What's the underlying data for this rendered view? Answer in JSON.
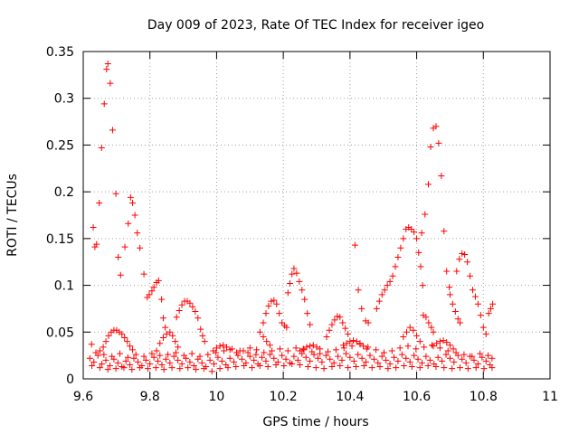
{
  "chart_data": {
    "type": "scatter",
    "title": "Day 009 of 2023, Rate Of TEC Index for receiver igeo",
    "xlabel": "GPS time / hours",
    "ylabel": "ROTI / TECUs",
    "xlim": [
      9.6,
      11
    ],
    "ylim": [
      0,
      0.35
    ],
    "x_ticks": [
      9.6,
      9.8,
      10,
      10.2,
      10.4,
      10.6,
      10.8,
      11
    ],
    "x_tick_labels": [
      "9.6",
      "9.8",
      "10",
      "10.2",
      "10.4",
      "10.6",
      "10.8",
      "11"
    ],
    "y_ticks": [
      0,
      0.05,
      0.1,
      0.15,
      0.2,
      0.25,
      0.3,
      0.35
    ],
    "y_tick_labels": [
      "0",
      "0.05",
      "0.1",
      "0.15",
      "0.2",
      "0.25",
      "0.3",
      "0.35"
    ],
    "grid": true,
    "marker": "plus",
    "color": "#ff0000",
    "points": [
      [
        9.625,
        0.037
      ],
      [
        9.63,
        0.162
      ],
      [
        9.635,
        0.141
      ],
      [
        9.64,
        0.144
      ],
      [
        9.648,
        0.188
      ],
      [
        9.655,
        0.247
      ],
      [
        9.663,
        0.294
      ],
      [
        9.67,
        0.331
      ],
      [
        9.674,
        0.337
      ],
      [
        9.681,
        0.316
      ],
      [
        9.688,
        0.266
      ],
      [
        9.698,
        0.198
      ],
      [
        9.705,
        0.13
      ],
      [
        9.712,
        0.111
      ],
      [
        9.725,
        0.141
      ],
      [
        9.735,
        0.166
      ],
      [
        9.742,
        0.194
      ],
      [
        9.748,
        0.188
      ],
      [
        9.755,
        0.175
      ],
      [
        9.762,
        0.156
      ],
      [
        9.77,
        0.14
      ],
      [
        9.782,
        0.112
      ],
      [
        9.792,
        0.087
      ],
      [
        9.798,
        0.09
      ],
      [
        9.806,
        0.094
      ],
      [
        9.812,
        0.098
      ],
      [
        9.82,
        0.103
      ],
      [
        9.826,
        0.105
      ],
      [
        9.835,
        0.085
      ],
      [
        9.84,
        0.065
      ],
      [
        9.846,
        0.055
      ],
      [
        9.65,
        0.03
      ],
      [
        9.66,
        0.034
      ],
      [
        9.668,
        0.04
      ],
      [
        9.676,
        0.046
      ],
      [
        9.684,
        0.05
      ],
      [
        9.692,
        0.052
      ],
      [
        9.7,
        0.052
      ],
      [
        9.708,
        0.05
      ],
      [
        9.716,
        0.048
      ],
      [
        9.724,
        0.044
      ],
      [
        9.732,
        0.04
      ],
      [
        9.74,
        0.035
      ],
      [
        9.748,
        0.031
      ],
      [
        9.88,
        0.066
      ],
      [
        9.888,
        0.073
      ],
      [
        9.896,
        0.079
      ],
      [
        9.904,
        0.083
      ],
      [
        9.912,
        0.083
      ],
      [
        9.92,
        0.081
      ],
      [
        9.928,
        0.077
      ],
      [
        9.936,
        0.072
      ],
      [
        9.944,
        0.065
      ],
      [
        9.952,
        0.053
      ],
      [
        9.958,
        0.046
      ],
      [
        9.964,
        0.04
      ],
      [
        9.82,
        0.03
      ],
      [
        9.83,
        0.038
      ],
      [
        9.84,
        0.044
      ],
      [
        9.85,
        0.048
      ],
      [
        9.86,
        0.05
      ],
      [
        9.868,
        0.046
      ],
      [
        9.876,
        0.04
      ],
      [
        9.884,
        0.034
      ],
      [
        10.14,
        0.06
      ],
      [
        10.148,
        0.07
      ],
      [
        10.156,
        0.078
      ],
      [
        10.164,
        0.083
      ],
      [
        10.172,
        0.084
      ],
      [
        10.18,
        0.08
      ],
      [
        10.188,
        0.07
      ],
      [
        10.196,
        0.06
      ],
      [
        10.204,
        0.057
      ],
      [
        10.21,
        0.055
      ],
      [
        10.13,
        0.05
      ],
      [
        10.14,
        0.045
      ],
      [
        10.15,
        0.04
      ],
      [
        10.16,
        0.036
      ],
      [
        10.214,
        0.092
      ],
      [
        10.22,
        0.102
      ],
      [
        10.226,
        0.112
      ],
      [
        10.232,
        0.118
      ],
      [
        10.24,
        0.113
      ],
      [
        10.248,
        0.104
      ],
      [
        10.256,
        0.095
      ],
      [
        10.264,
        0.085
      ],
      [
        10.272,
        0.07
      ],
      [
        10.28,
        0.058
      ],
      [
        10.33,
        0.045
      ],
      [
        10.338,
        0.052
      ],
      [
        10.346,
        0.058
      ],
      [
        10.354,
        0.063
      ],
      [
        10.362,
        0.067
      ],
      [
        10.37,
        0.066
      ],
      [
        10.378,
        0.06
      ],
      [
        10.386,
        0.054
      ],
      [
        10.394,
        0.048
      ],
      [
        10.415,
        0.143
      ],
      [
        10.425,
        0.095
      ],
      [
        10.435,
        0.075
      ],
      [
        10.447,
        0.062
      ],
      [
        10.455,
        0.06
      ],
      [
        10.48,
        0.075
      ],
      [
        10.488,
        0.083
      ],
      [
        10.496,
        0.09
      ],
      [
        10.504,
        0.095
      ],
      [
        10.512,
        0.1
      ],
      [
        10.52,
        0.104
      ],
      [
        10.528,
        0.11
      ],
      [
        10.536,
        0.12
      ],
      [
        10.544,
        0.13
      ],
      [
        10.552,
        0.14
      ],
      [
        10.56,
        0.15
      ],
      [
        10.568,
        0.16
      ],
      [
        10.576,
        0.162
      ],
      [
        10.584,
        0.16
      ],
      [
        10.592,
        0.157
      ],
      [
        10.6,
        0.15
      ],
      [
        10.606,
        0.135
      ],
      [
        10.612,
        0.12
      ],
      [
        10.618,
        0.1
      ],
      [
        10.62,
        0.068
      ],
      [
        10.628,
        0.066
      ],
      [
        10.636,
        0.06
      ],
      [
        10.644,
        0.055
      ],
      [
        10.65,
        0.05
      ],
      [
        10.615,
        0.156
      ],
      [
        10.625,
        0.176
      ],
      [
        10.635,
        0.208
      ],
      [
        10.642,
        0.248
      ],
      [
        10.65,
        0.268
      ],
      [
        10.658,
        0.27
      ],
      [
        10.666,
        0.252
      ],
      [
        10.674,
        0.217
      ],
      [
        10.682,
        0.158
      ],
      [
        10.69,
        0.115
      ],
      [
        10.698,
        0.098
      ],
      [
        10.7,
        0.09
      ],
      [
        10.708,
        0.08
      ],
      [
        10.716,
        0.072
      ],
      [
        10.724,
        0.064
      ],
      [
        10.73,
        0.06
      ],
      [
        10.72,
        0.115
      ],
      [
        10.728,
        0.128
      ],
      [
        10.736,
        0.134
      ],
      [
        10.744,
        0.133
      ],
      [
        10.752,
        0.125
      ],
      [
        10.76,
        0.11
      ],
      [
        10.768,
        0.095
      ],
      [
        10.776,
        0.088
      ],
      [
        10.784,
        0.08
      ],
      [
        10.792,
        0.068
      ],
      [
        10.8,
        0.055
      ],
      [
        10.808,
        0.048
      ],
      [
        10.816,
        0.07
      ],
      [
        10.822,
        0.075
      ],
      [
        10.828,
        0.08
      ],
      [
        10.56,
        0.045
      ],
      [
        10.57,
        0.05
      ],
      [
        10.58,
        0.055
      ],
      [
        10.59,
        0.052
      ],
      [
        10.6,
        0.046
      ],
      [
        10.61,
        0.04
      ],
      [
        9.62,
        0.022
      ],
      [
        9.632,
        0.018
      ],
      [
        9.644,
        0.025
      ],
      [
        9.656,
        0.016
      ],
      [
        9.668,
        0.02
      ],
      [
        9.68,
        0.014
      ],
      [
        9.692,
        0.021
      ],
      [
        9.704,
        0.017
      ],
      [
        9.716,
        0.013
      ],
      [
        9.728,
        0.019
      ],
      [
        9.74,
        0.015
      ],
      [
        9.752,
        0.022
      ],
      [
        9.764,
        0.018
      ],
      [
        9.776,
        0.014
      ],
      [
        9.788,
        0.02
      ],
      [
        9.8,
        0.016
      ],
      [
        9.812,
        0.023
      ],
      [
        9.824,
        0.019
      ],
      [
        9.836,
        0.015
      ],
      [
        9.848,
        0.021
      ],
      [
        9.86,
        0.017
      ],
      [
        9.872,
        0.024
      ],
      [
        9.884,
        0.02
      ],
      [
        9.896,
        0.016
      ],
      [
        9.908,
        0.022
      ],
      [
        9.92,
        0.018
      ],
      [
        9.932,
        0.014
      ],
      [
        9.944,
        0.021
      ],
      [
        9.956,
        0.017
      ],
      [
        9.968,
        0.013
      ],
      [
        9.98,
        0.02
      ],
      [
        9.992,
        0.016
      ],
      [
        10.004,
        0.023
      ],
      [
        10.016,
        0.019
      ],
      [
        10.028,
        0.015
      ],
      [
        10.04,
        0.022
      ],
      [
        10.052,
        0.018
      ],
      [
        10.064,
        0.025
      ],
      [
        10.076,
        0.021
      ],
      [
        10.088,
        0.017
      ],
      [
        10.1,
        0.024
      ],
      [
        10.112,
        0.02
      ],
      [
        10.124,
        0.016
      ],
      [
        10.136,
        0.023
      ],
      [
        10.148,
        0.019
      ],
      [
        10.16,
        0.026
      ],
      [
        10.172,
        0.022
      ],
      [
        10.184,
        0.018
      ],
      [
        10.196,
        0.025
      ],
      [
        10.208,
        0.021
      ],
      [
        10.22,
        0.017
      ],
      [
        10.232,
        0.024
      ],
      [
        10.244,
        0.02
      ],
      [
        10.256,
        0.027
      ],
      [
        10.268,
        0.023
      ],
      [
        10.28,
        0.019
      ],
      [
        10.292,
        0.026
      ],
      [
        10.304,
        0.022
      ],
      [
        10.316,
        0.018
      ],
      [
        10.328,
        0.025
      ],
      [
        10.34,
        0.021
      ],
      [
        10.352,
        0.017
      ],
      [
        10.364,
        0.024
      ],
      [
        10.376,
        0.02
      ],
      [
        10.388,
        0.027
      ],
      [
        10.4,
        0.023
      ],
      [
        10.412,
        0.019
      ],
      [
        10.424,
        0.026
      ],
      [
        10.436,
        0.022
      ],
      [
        10.448,
        0.018
      ],
      [
        10.46,
        0.025
      ],
      [
        10.472,
        0.021
      ],
      [
        10.484,
        0.017
      ],
      [
        10.496,
        0.024
      ],
      [
        10.508,
        0.02
      ],
      [
        10.52,
        0.016
      ],
      [
        10.532,
        0.023
      ],
      [
        10.544,
        0.019
      ],
      [
        10.556,
        0.026
      ],
      [
        10.568,
        0.022
      ],
      [
        10.58,
        0.018
      ],
      [
        10.592,
        0.025
      ],
      [
        10.604,
        0.021
      ],
      [
        10.616,
        0.017
      ],
      [
        10.628,
        0.024
      ],
      [
        10.64,
        0.02
      ],
      [
        10.652,
        0.016
      ],
      [
        10.664,
        0.023
      ],
      [
        10.676,
        0.019
      ],
      [
        10.688,
        0.026
      ],
      [
        10.7,
        0.022
      ],
      [
        10.712,
        0.018
      ],
      [
        10.724,
        0.025
      ],
      [
        10.736,
        0.021
      ],
      [
        10.748,
        0.017
      ],
      [
        10.76,
        0.024
      ],
      [
        10.772,
        0.02
      ],
      [
        10.784,
        0.016
      ],
      [
        10.796,
        0.023
      ],
      [
        10.808,
        0.019
      ],
      [
        10.82,
        0.015
      ],
      [
        10.826,
        0.022
      ],
      [
        9.626,
        0.014
      ],
      [
        9.638,
        0.028
      ],
      [
        9.65,
        0.012
      ],
      [
        9.662,
        0.026
      ],
      [
        9.674,
        0.01
      ],
      [
        9.686,
        0.024
      ],
      [
        9.698,
        0.011
      ],
      [
        9.71,
        0.027
      ],
      [
        9.722,
        0.012
      ],
      [
        9.734,
        0.023
      ],
      [
        9.746,
        0.01
      ],
      [
        9.758,
        0.026
      ],
      [
        9.77,
        0.012
      ],
      [
        9.782,
        0.024
      ],
      [
        9.794,
        0.011
      ],
      [
        9.806,
        0.027
      ],
      [
        9.818,
        0.012
      ],
      [
        9.83,
        0.025
      ],
      [
        9.842,
        0.01
      ],
      [
        9.854,
        0.026
      ],
      [
        9.866,
        0.012
      ],
      [
        9.878,
        0.028
      ],
      [
        9.89,
        0.011
      ],
      [
        9.902,
        0.025
      ],
      [
        9.914,
        0.012
      ],
      [
        9.926,
        0.027
      ],
      [
        9.938,
        0.01
      ],
      [
        9.95,
        0.024
      ],
      [
        9.962,
        0.011
      ],
      [
        9.974,
        0.026
      ],
      [
        9.986,
        0.008
      ],
      [
        9.998,
        0.028
      ],
      [
        10.01,
        0.011
      ],
      [
        10.022,
        0.03
      ],
      [
        10.034,
        0.012
      ],
      [
        10.046,
        0.032
      ],
      [
        10.058,
        0.013
      ],
      [
        10.07,
        0.03
      ],
      [
        10.082,
        0.014
      ],
      [
        10.094,
        0.028
      ],
      [
        10.106,
        0.012
      ],
      [
        10.118,
        0.026
      ],
      [
        10.13,
        0.014
      ],
      [
        10.142,
        0.028
      ],
      [
        10.154,
        0.013
      ],
      [
        10.166,
        0.03
      ],
      [
        10.178,
        0.015
      ],
      [
        10.19,
        0.032
      ],
      [
        10.202,
        0.014
      ],
      [
        10.214,
        0.03
      ],
      [
        10.226,
        0.016
      ],
      [
        10.238,
        0.033
      ],
      [
        10.25,
        0.015
      ],
      [
        10.262,
        0.031
      ],
      [
        10.274,
        0.013
      ],
      [
        10.286,
        0.029
      ],
      [
        10.298,
        0.012
      ],
      [
        10.31,
        0.027
      ],
      [
        10.322,
        0.011
      ],
      [
        10.334,
        0.029
      ],
      [
        10.346,
        0.013
      ],
      [
        10.358,
        0.031
      ],
      [
        10.37,
        0.014
      ],
      [
        10.382,
        0.033
      ],
      [
        10.394,
        0.012
      ],
      [
        10.406,
        0.035
      ],
      [
        10.418,
        0.013
      ],
      [
        10.43,
        0.037
      ],
      [
        10.442,
        0.014
      ],
      [
        10.454,
        0.034
      ],
      [
        10.466,
        0.012
      ],
      [
        10.478,
        0.031
      ],
      [
        10.49,
        0.013
      ],
      [
        10.502,
        0.028
      ],
      [
        10.514,
        0.011
      ],
      [
        10.526,
        0.03
      ],
      [
        10.538,
        0.012
      ],
      [
        10.55,
        0.033
      ],
      [
        10.562,
        0.014
      ],
      [
        10.574,
        0.035
      ],
      [
        10.586,
        0.013
      ],
      [
        10.598,
        0.032
      ],
      [
        10.61,
        0.012
      ],
      [
        10.622,
        0.034
      ],
      [
        10.634,
        0.014
      ],
      [
        10.646,
        0.036
      ],
      [
        10.658,
        0.013
      ],
      [
        10.67,
        0.033
      ],
      [
        10.682,
        0.012
      ],
      [
        10.694,
        0.03
      ],
      [
        10.706,
        0.011
      ],
      [
        10.718,
        0.028
      ],
      [
        10.73,
        0.012
      ],
      [
        10.742,
        0.026
      ],
      [
        10.754,
        0.011
      ],
      [
        10.766,
        0.024
      ],
      [
        10.778,
        0.012
      ],
      [
        10.79,
        0.027
      ],
      [
        10.802,
        0.011
      ],
      [
        10.814,
        0.025
      ],
      [
        10.826,
        0.012
      ],
      [
        9.99,
        0.03
      ],
      [
        10.0,
        0.033
      ],
      [
        10.01,
        0.035
      ],
      [
        10.02,
        0.036
      ],
      [
        10.03,
        0.034
      ],
      [
        10.04,
        0.031
      ],
      [
        10.06,
        0.028
      ],
      [
        10.08,
        0.03
      ],
      [
        10.1,
        0.033
      ],
      [
        10.12,
        0.031
      ],
      [
        10.25,
        0.03
      ],
      [
        10.26,
        0.032
      ],
      [
        10.27,
        0.034
      ],
      [
        10.28,
        0.035
      ],
      [
        10.29,
        0.036
      ],
      [
        10.3,
        0.034
      ],
      [
        10.31,
        0.032
      ],
      [
        10.38,
        0.036
      ],
      [
        10.39,
        0.038
      ],
      [
        10.4,
        0.04
      ],
      [
        10.41,
        0.041
      ],
      [
        10.42,
        0.04
      ],
      [
        10.43,
        0.038
      ],
      [
        10.44,
        0.035
      ],
      [
        10.45,
        0.032
      ],
      [
        10.65,
        0.035
      ],
      [
        10.66,
        0.038
      ],
      [
        10.67,
        0.04
      ],
      [
        10.68,
        0.041
      ],
      [
        10.69,
        0.039
      ],
      [
        10.7,
        0.036
      ],
      [
        10.71,
        0.032
      ]
    ]
  }
}
